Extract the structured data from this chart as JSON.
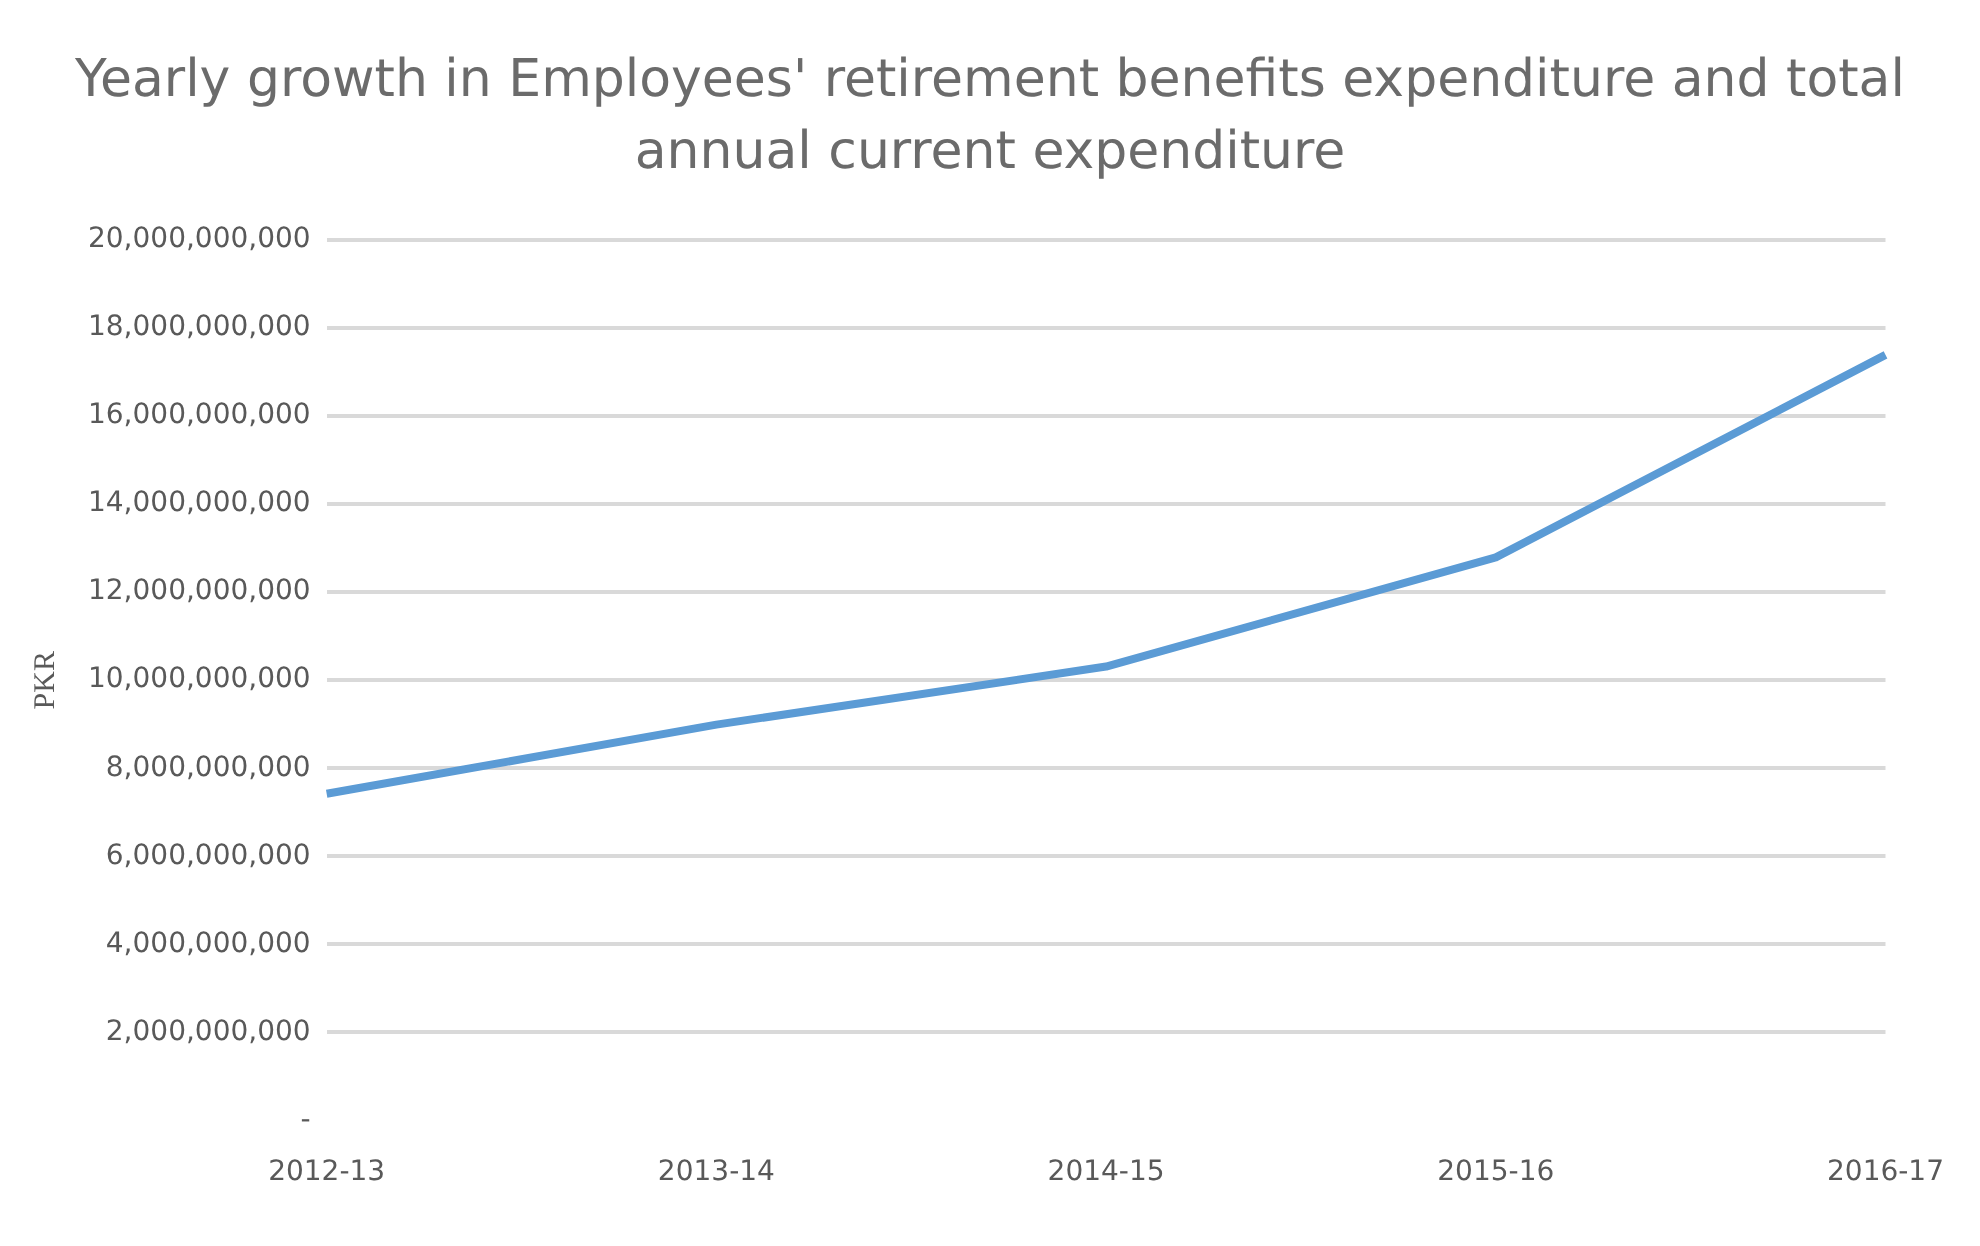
{
  "chart_data": {
    "type": "line",
    "title": "Yearly growth in Employees' retirement benefits expenditure and total annual current expenditure",
    "ylabel": "PKR",
    "categories": [
      "2012-13",
      "2013-14",
      "2014-15",
      "2015-16",
      "2016-17"
    ],
    "series": [
      {
        "color": "#5b9bd5",
        "values": [
          7420000000,
          8990000000,
          10310000000,
          12790000000,
          17390000000
        ]
      }
    ],
    "ylim": [
      0,
      20000000000
    ],
    "yticks": [
      {
        "value": 0,
        "label": "-"
      },
      {
        "value": 2000000000,
        "label": "2,000,000,000"
      },
      {
        "value": 4000000000,
        "label": "4,000,000,000"
      },
      {
        "value": 6000000000,
        "label": "6,000,000,000"
      },
      {
        "value": 8000000000,
        "label": "8,000,000,000"
      },
      {
        "value": 10000000000,
        "label": "10,000,000,000"
      },
      {
        "value": 12000000000,
        "label": "12,000,000,000"
      },
      {
        "value": 14000000000,
        "label": "14,000,000,000"
      },
      {
        "value": 16000000000,
        "label": "16,000,000,000"
      },
      {
        "value": 18000000000,
        "label": "18,000,000,000"
      },
      {
        "value": 20000000000,
        "label": "20,000,000,000"
      }
    ],
    "grid": "y",
    "legend": false,
    "marker": "none",
    "line_style": "solid"
  }
}
